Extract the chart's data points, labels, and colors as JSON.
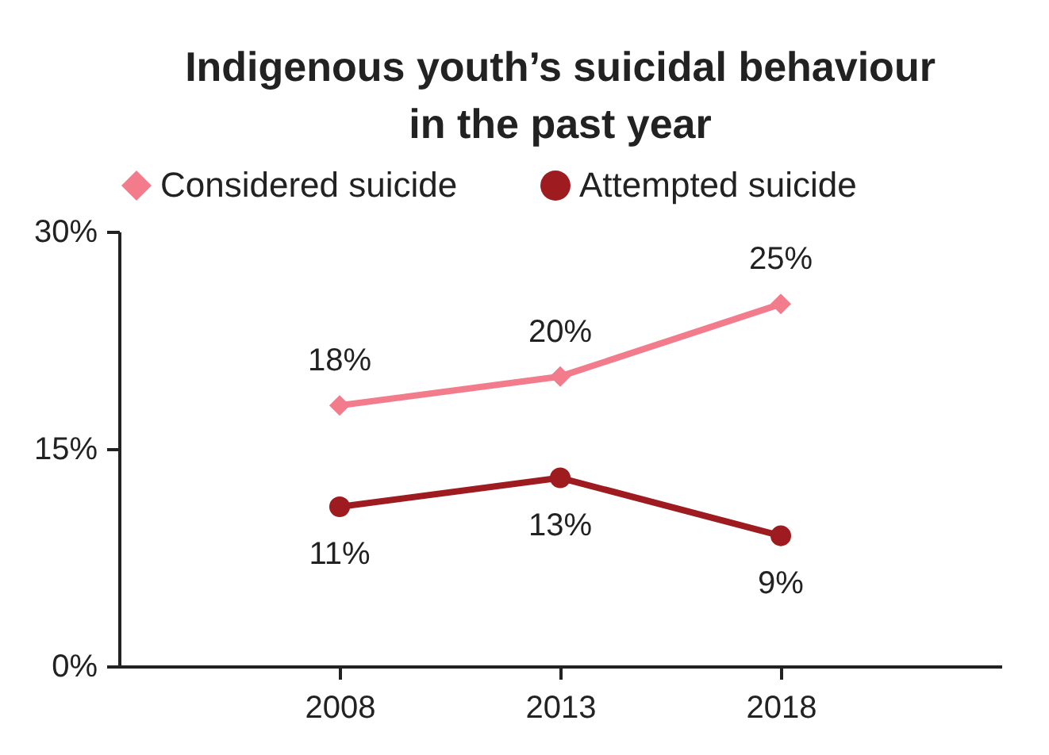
{
  "chart_data": {
    "type": "line",
    "title": "Indigenous youth’s suicidal behaviour in the past year",
    "categories": [
      "2008",
      "2013",
      "2018"
    ],
    "series": [
      {
        "name": "Considered suicide",
        "color": "#f27b8c",
        "marker": "diamond",
        "values": [
          18,
          20,
          25
        ],
        "value_labels": [
          "18%",
          "20%",
          "25%"
        ]
      },
      {
        "name": "Attempted suicide",
        "color": "#9e1b20",
        "marker": "circle",
        "values": [
          11,
          13,
          9
        ],
        "value_labels": [
          "11%",
          "13%",
          "9%"
        ]
      }
    ],
    "ylim": [
      0,
      30
    ],
    "yticks": [
      {
        "value": 0,
        "label": "0%"
      },
      {
        "value": 15,
        "label": "15%"
      },
      {
        "value": 30,
        "label": "30%"
      }
    ],
    "grid": false,
    "legend": "top"
  }
}
